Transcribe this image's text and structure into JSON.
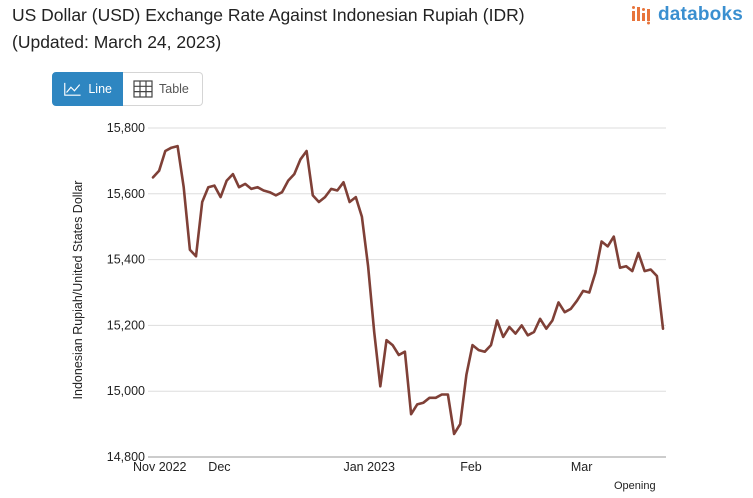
{
  "header": {
    "title": "US Dollar (USD) Exchange Rate Against Indonesian Rupiah (IDR) (Updated: March 24, 2023)",
    "logo_text": "databoks"
  },
  "tabs": [
    {
      "label": "Line",
      "icon": "line-chart-icon",
      "active": true
    },
    {
      "label": "Table",
      "icon": "table-grid-icon",
      "active": false
    }
  ],
  "colors": {
    "line": "#7f4037",
    "accent": "#2e86c1",
    "logo_blue": "#3a8fd0",
    "logo_orange": "#e8743b",
    "grid": "#dddddd"
  },
  "footnote": "Opening",
  "chart_data": {
    "type": "line",
    "title": "US Dollar (USD) Exchange Rate Against Indonesian Rupiah (IDR) (Updated: March 24, 2023)",
    "xlabel": "",
    "ylabel": "Indonesian Rupiah/United States Dollar",
    "ylim": [
      14800,
      15800
    ],
    "yticks": [
      14800,
      15000,
      15200,
      15400,
      15600,
      15800
    ],
    "ytick_labels": [
      "14,800",
      "15,000",
      "15,200",
      "15,400",
      "15,600",
      "15,800"
    ],
    "grid": true,
    "xticks": [
      {
        "label": "Nov 2022",
        "index": 0
      },
      {
        "label": "Dec",
        "index": 9
      },
      {
        "label": "Jan 2023",
        "index": 31
      },
      {
        "label": "Feb",
        "index": 50
      },
      {
        "label": "Mar",
        "index": 68
      }
    ],
    "series": [
      {
        "values": [
          15650,
          15670,
          15730,
          15740,
          15745,
          15620,
          15430,
          15410,
          15575,
          15620,
          15625,
          15590,
          15640,
          15660,
          15620,
          15630,
          15615,
          15620,
          15610,
          15605,
          15595,
          15605,
          15640,
          15660,
          15705,
          15730,
          15595,
          15575,
          15590,
          15615,
          15610,
          15635,
          15575,
          15590,
          15530,
          15380,
          15180,
          15015,
          15155,
          15140,
          15110,
          15120,
          14930,
          14960,
          14965,
          14980,
          14980,
          14990,
          14990,
          14870,
          14900,
          15050,
          15140,
          15125,
          15120,
          15140,
          15215,
          15165,
          15195,
          15175,
          15200,
          15170,
          15180,
          15220,
          15190,
          15215,
          15270,
          15240,
          15250,
          15275,
          15305,
          15300,
          15360,
          15455,
          15440,
          15470,
          15375,
          15380,
          15365,
          15420,
          15365,
          15370,
          15350,
          15190
        ]
      }
    ]
  }
}
